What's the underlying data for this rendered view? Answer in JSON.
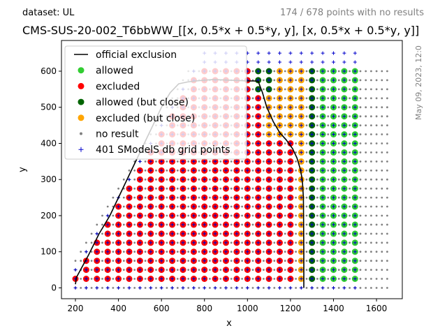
{
  "header": {
    "dataset": "dataset: UL",
    "counts": "174 / 678 points with no results",
    "title": "CMS-SUS-20-002_T6bbWW_[[x, 0.5*x + 0.5*y, y], [x, 0.5*x + 0.5*y, y]]",
    "stamp": "May 09, 2023, 12:0"
  },
  "chart_data": {
    "type": "scatter",
    "xlabel": "x",
    "ylabel": "y",
    "xlim": [
      135,
      1720
    ],
    "ylim": [
      -30,
      685
    ],
    "xticks": [
      200,
      400,
      600,
      800,
      1000,
      1200,
      1400,
      1600
    ],
    "yticks": [
      0,
      100,
      200,
      300,
      400,
      500,
      600
    ],
    "grid": false,
    "legend_position": "upper-left",
    "grid_step": 50,
    "legend": [
      {
        "label": "official exclusion",
        "kind": "line",
        "color": "#000000"
      },
      {
        "label": "allowed",
        "kind": "dot",
        "color": "#32cd32"
      },
      {
        "label": "excluded",
        "kind": "dot",
        "color": "#ff0000"
      },
      {
        "label": "allowed (but close)",
        "kind": "dot",
        "color": "#006400"
      },
      {
        "label": "excluded (but close)",
        "kind": "dot",
        "color": "#ffa500"
      },
      {
        "label": "no result",
        "kind": "small",
        "color": "#808080"
      },
      {
        "label": "401 SModelS db grid points",
        "kind": "plus",
        "color": "#0000cc"
      }
    ],
    "series": [
      {
        "name": "official exclusion",
        "type": "line",
        "color": "#000000",
        "x": [
          200,
          205,
          210,
          260,
          310,
          360,
          400,
          440,
          480,
          520,
          560,
          600,
          640,
          680,
          720,
          760,
          800,
          840,
          880,
          920,
          960,
          1000,
          1030,
          1050,
          1070,
          1090,
          1120,
          1150,
          1180,
          1210,
          1230,
          1245,
          1255,
          1260,
          1262,
          1262
        ],
        "y": [
          10,
          30,
          35,
          90,
          150,
          200,
          250,
          300,
          350,
          400,
          450,
          500,
          540,
          565,
          570,
          573,
          575,
          577,
          576,
          575,
          574,
          573,
          573,
          572,
          540,
          500,
          460,
          430,
          410,
          385,
          360,
          330,
          300,
          250,
          100,
          0
        ]
      }
    ],
    "regions": {
      "excluded_below_x": 1240,
      "excluded_but_close_x": 1250,
      "allowed_but_close_x": 1300,
      "upper_allowed_but_close_x": 1050,
      "upper_allowed_but_close_y": 550,
      "results_x_range": [
        200,
        1500
      ],
      "results_y_range": [
        25,
        600
      ],
      "no_result_x_range": [
        200,
        1650
      ],
      "no_result_y_range": [
        0,
        600
      ]
    }
  }
}
